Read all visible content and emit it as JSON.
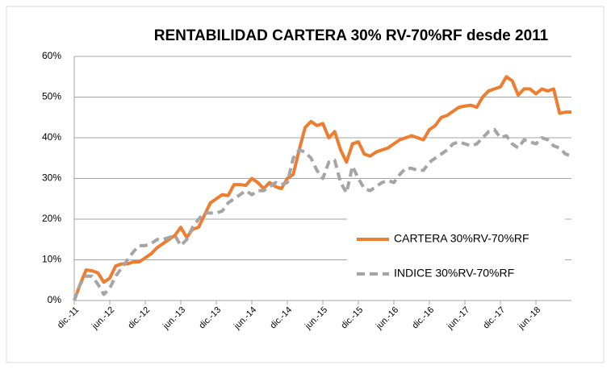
{
  "chart_data": {
    "type": "line",
    "title": "RENTABILIDAD CARTERA 30% RV-70%RF desde 2011",
    "categories": [
      "dic.-11",
      null,
      null,
      null,
      null,
      null,
      "jun.-12",
      null,
      null,
      null,
      null,
      null,
      "dic.-12",
      null,
      null,
      null,
      null,
      null,
      "jun.-13",
      null,
      null,
      null,
      null,
      null,
      "dic.-13",
      null,
      null,
      null,
      null,
      null,
      "jun.-14",
      null,
      null,
      null,
      null,
      null,
      "dic.-14",
      null,
      null,
      null,
      null,
      null,
      "jun.-15",
      null,
      null,
      null,
      null,
      null,
      "dic.-15",
      null,
      null,
      null,
      null,
      null,
      "jun.-16",
      null,
      null,
      null,
      null,
      null,
      "dic.-16",
      null,
      null,
      null,
      null,
      null,
      "jun.-17",
      null,
      null,
      null,
      null,
      null,
      "dic.-17",
      null,
      null,
      null,
      null,
      null,
      "jun.-18",
      null,
      null,
      null,
      null,
      null,
      null
    ],
    "series": [
      {
        "name": "CARTERA 30%RV-70%RF",
        "color": "#ed7d31",
        "dashed": false,
        "values": [
          0,
          4,
          7.5,
          7.3,
          6.8,
          4.5,
          5.5,
          8.5,
          9,
          9,
          9.5,
          9.5,
          10.5,
          11.5,
          13,
          14,
          15,
          16,
          18,
          15.5,
          17.5,
          18,
          21,
          24,
          25,
          26,
          25.8,
          28.5,
          28.5,
          28.3,
          30,
          29,
          27.5,
          29,
          28,
          27.5,
          30,
          31,
          37,
          42.5,
          44,
          43,
          43.5,
          40,
          41.5,
          37,
          34,
          38.5,
          39,
          36,
          35.5,
          36.5,
          37,
          37.5,
          38.5,
          39.5,
          40,
          40.5,
          40,
          39.5,
          42,
          43,
          45,
          45.5,
          46.5,
          47.5,
          47.8,
          48,
          47.5,
          50,
          51.5,
          52,
          52.5,
          55,
          54,
          50.5,
          52,
          52,
          50.8,
          52,
          51.5,
          52,
          46,
          46.3,
          46.3
        ]
      },
      {
        "name": "INDICE 30%RV-70%RF",
        "color": "#a5a5a5",
        "dashed": true,
        "values": [
          0,
          4,
          6,
          6,
          4,
          1.5,
          3,
          6,
          8,
          10,
          12,
          13.5,
          13.5,
          14,
          15,
          15,
          15.5,
          16,
          13.5,
          15,
          18,
          20,
          21.5,
          21.5,
          21.5,
          22,
          24,
          25,
          26,
          27,
          26,
          27,
          27,
          28,
          29,
          28.5,
          29,
          35,
          37,
          36.5,
          35,
          32,
          30,
          34,
          34.5,
          29,
          26.5,
          33,
          30,
          27.5,
          27,
          28,
          29,
          29.5,
          29,
          31,
          32.5,
          32.5,
          32,
          32,
          34,
          35,
          36,
          37,
          38.5,
          39,
          38.5,
          38,
          38.5,
          40,
          41.5,
          42,
          40,
          40.5,
          38.5,
          37.5,
          39.5,
          39,
          38.5,
          40,
          39.5,
          38,
          37.5,
          36,
          35.5
        ]
      }
    ],
    "ylim": [
      0,
      60
    ],
    "yticks": [
      {
        "value": 0,
        "label": "0%"
      },
      {
        "value": 10,
        "label": "10%"
      },
      {
        "value": 20,
        "label": "20%"
      },
      {
        "value": 30,
        "label": "30%"
      },
      {
        "value": 40,
        "label": "40%"
      },
      {
        "value": 50,
        "label": "50%"
      },
      {
        "value": 60,
        "label": "60%"
      }
    ],
    "grid": true,
    "legend_position": "right"
  }
}
